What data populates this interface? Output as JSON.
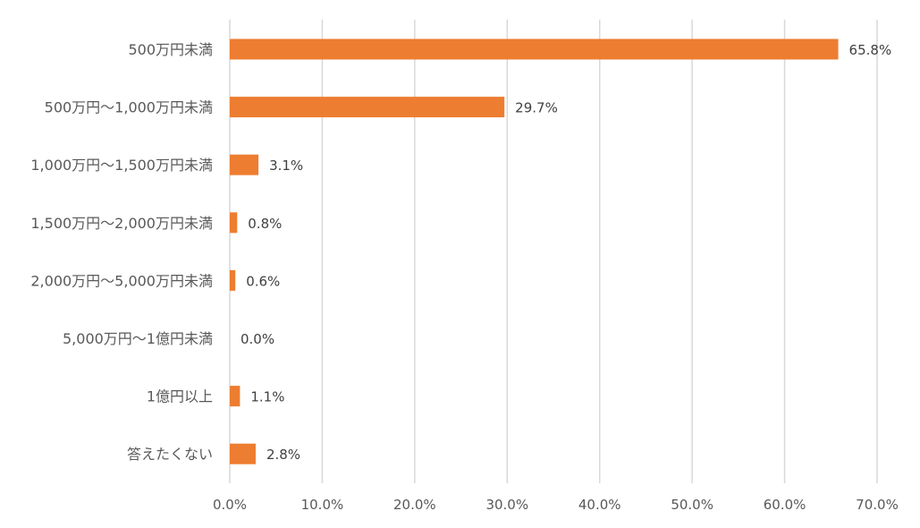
{
  "chart_data": {
    "type": "bar",
    "orientation": "horizontal",
    "title": "",
    "xlabel": "",
    "ylabel": "",
    "categories": [
      "500万円未満",
      "500万円～1,000万円未満",
      "1,000万円～1,500万円未満",
      "1,500万円～2,000万円未満",
      "2,000万円～5,000万円未満",
      "5,000万円～1億円未満",
      "1億円以上",
      "答えたくない"
    ],
    "values": [
      65.8,
      29.7,
      3.1,
      0.8,
      0.6,
      0.0,
      1.1,
      2.8
    ],
    "value_labels": [
      "65.8%",
      "29.7%",
      "3.1%",
      "0.8%",
      "0.6%",
      "0.0%",
      "1.1%",
      "2.8%"
    ],
    "xlim": [
      0,
      70
    ],
    "ticks": [
      0,
      10,
      20,
      30,
      40,
      50,
      60,
      70
    ],
    "tick_labels": [
      "0.0%",
      "10.0%",
      "20.0%",
      "30.0%",
      "40.0%",
      "50.0%",
      "60.0%",
      "70.0%"
    ],
    "grid": "vertical",
    "legend": "none",
    "bar_color": "#ED7D31"
  }
}
